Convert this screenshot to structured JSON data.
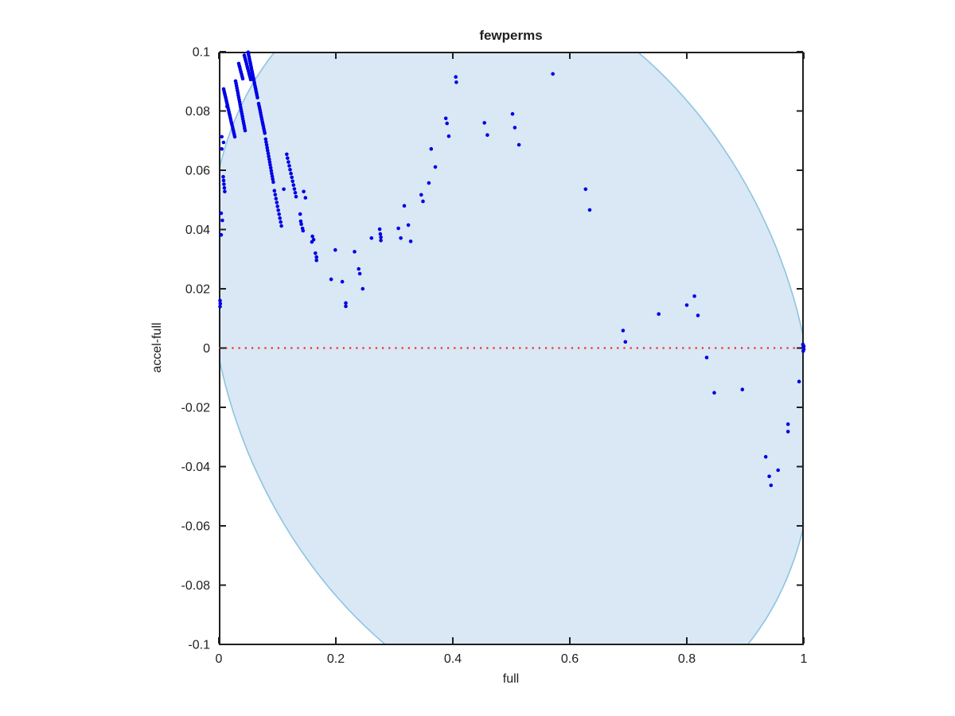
{
  "title": "fewperms",
  "colors": {
    "marker": "#0000e6",
    "ellipse_fill": "#d9e8f4",
    "ellipse_edge": "#8ec4e2",
    "zero_line": "#ef2d21",
    "axis": "#1f1f1f",
    "background": "#ffffff"
  },
  "chart_data": {
    "type": "scatter",
    "title": "fewperms",
    "xlabel": "full",
    "ylabel": "accel-full",
    "xlim": [
      0,
      1
    ],
    "ylim": [
      -0.1,
      0.1
    ],
    "grid": false,
    "legend": null,
    "xticks": {
      "values": [
        0,
        0.2,
        0.4,
        0.6,
        0.8,
        1
      ],
      "labels": [
        "0",
        "0.2",
        "0.4",
        "0.6",
        "0.8",
        "1"
      ]
    },
    "yticks": {
      "values": [
        -0.1,
        -0.08,
        -0.06,
        -0.04,
        -0.02,
        0,
        0.02,
        0.04,
        0.06,
        0.08,
        0.1
      ],
      "labels": [
        "-0.1",
        "-0.08",
        "-0.06",
        "-0.04",
        "-0.02",
        "0",
        "0.02",
        "0.04",
        "0.06",
        "0.08",
        "0.1"
      ]
    },
    "zero_line": {
      "y": 0,
      "style": "dotted"
    },
    "ellipse": {
      "center": [
        0.5,
        0
      ],
      "rx": 0.518,
      "ry": 0.1233,
      "angle_deg": -3.45
    },
    "streaks": [
      {
        "from": [
          0.0082,
          0.0874
        ],
        "to": [
          0.0272,
          0.0713
        ],
        "n": 24
      },
      {
        "from": [
          0.0286,
          0.0901
        ],
        "to": [
          0.0449,
          0.0734
        ],
        "n": 22
      },
      {
        "from": [
          0.034,
          0.096
        ],
        "to": [
          0.0408,
          0.0909
        ],
        "n": 8
      },
      {
        "from": [
          0.0435,
          0.0988
        ],
        "to": [
          0.0544,
          0.0906
        ],
        "n": 12
      },
      {
        "from": [
          0.05,
          0.0998
        ],
        "to": [
          0.066,
          0.0845
        ],
        "n": 22
      },
      {
        "from": [
          0.068,
          0.0825
        ],
        "to": [
          0.0785,
          0.0725
        ],
        "n": 14
      },
      {
        "from": [
          0.08,
          0.0705
        ],
        "to": [
          0.093,
          0.056
        ],
        "n": 16
      },
      {
        "from": [
          0.095,
          0.0531
        ],
        "to": [
          0.107,
          0.0412
        ],
        "n": 10
      },
      {
        "from": [
          0.116,
          0.0654
        ],
        "to": [
          0.132,
          0.0511
        ],
        "n": 12
      },
      {
        "from": [
          0.0075,
          0.0578
        ],
        "to": [
          0.01,
          0.0528
        ],
        "n": 5
      }
    ],
    "points": [
      [
        0.014,
        0.0815
      ],
      [
        0.005,
        0.0713
      ],
      [
        0.008,
        0.0694
      ],
      [
        0.005,
        0.0672
      ],
      [
        0.004,
        0.0455
      ],
      [
        0.006,
        0.0431
      ],
      [
        0.004,
        0.0382
      ],
      [
        0.002,
        0.016
      ],
      [
        0.0025,
        0.015
      ],
      [
        0.002,
        0.014
      ],
      [
        0.111,
        0.0536
      ],
      [
        0.139,
        0.0452
      ],
      [
        0.14,
        0.0428
      ],
      [
        0.141,
        0.0418
      ],
      [
        0.143,
        0.0404
      ],
      [
        0.144,
        0.0396
      ],
      [
        0.145,
        0.0528
      ],
      [
        0.148,
        0.0507
      ],
      [
        0.159,
        0.0358
      ],
      [
        0.16,
        0.0377
      ],
      [
        0.162,
        0.0366
      ],
      [
        0.165,
        0.032
      ],
      [
        0.167,
        0.0307
      ],
      [
        0.167,
        0.0296
      ],
      [
        0.192,
        0.0232
      ],
      [
        0.199,
        0.0331
      ],
      [
        0.211,
        0.0224
      ],
      [
        0.217,
        0.0152
      ],
      [
        0.217,
        0.0141
      ],
      [
        0.232,
        0.0325
      ],
      [
        0.239,
        0.0267
      ],
      [
        0.241,
        0.0251
      ],
      [
        0.246,
        0.02
      ],
      [
        0.261,
        0.0371
      ],
      [
        0.275,
        0.0401
      ],
      [
        0.276,
        0.0385
      ],
      [
        0.277,
        0.0374
      ],
      [
        0.277,
        0.0363
      ],
      [
        0.307,
        0.0404
      ],
      [
        0.311,
        0.0371
      ],
      [
        0.317,
        0.048
      ],
      [
        0.324,
        0.0415
      ],
      [
        0.328,
        0.036
      ],
      [
        0.346,
        0.0517
      ],
      [
        0.349,
        0.0495
      ],
      [
        0.359,
        0.0557
      ],
      [
        0.363,
        0.0672
      ],
      [
        0.37,
        0.0611
      ],
      [
        0.388,
        0.0775
      ],
      [
        0.39,
        0.0758
      ],
      [
        0.393,
        0.0715
      ],
      [
        0.405,
        0.0915
      ],
      [
        0.406,
        0.0897
      ],
      [
        0.454,
        0.076
      ],
      [
        0.459,
        0.0719
      ],
      [
        0.502,
        0.079
      ],
      [
        0.506,
        0.0744
      ],
      [
        0.513,
        0.0686
      ],
      [
        0.571,
        0.0925
      ],
      [
        0.627,
        0.0536
      ],
      [
        0.634,
        0.0466
      ],
      [
        0.691,
        0.0059
      ],
      [
        0.695,
        0.0021
      ],
      [
        0.752,
        0.0115
      ],
      [
        0.8,
        0.0145
      ],
      [
        0.813,
        0.0175
      ],
      [
        0.819,
        0.011
      ],
      [
        0.834,
        -0.0032
      ],
      [
        0.847,
        -0.0151
      ],
      [
        0.895,
        -0.014
      ],
      [
        0.935,
        -0.0367
      ],
      [
        0.941,
        -0.0433
      ],
      [
        0.944,
        -0.0463
      ],
      [
        0.956,
        -0.0412
      ],
      [
        0.973,
        -0.0257
      ],
      [
        0.973,
        -0.0282
      ],
      [
        0.992,
        -0.0113
      ],
      [
        0.9985,
        0.0012
      ],
      [
        0.999,
        0.0002
      ],
      [
        0.999,
        -0.001
      ],
      [
        1.0,
        0.0006
      ],
      [
        1.0,
        -0.0004
      ]
    ]
  }
}
